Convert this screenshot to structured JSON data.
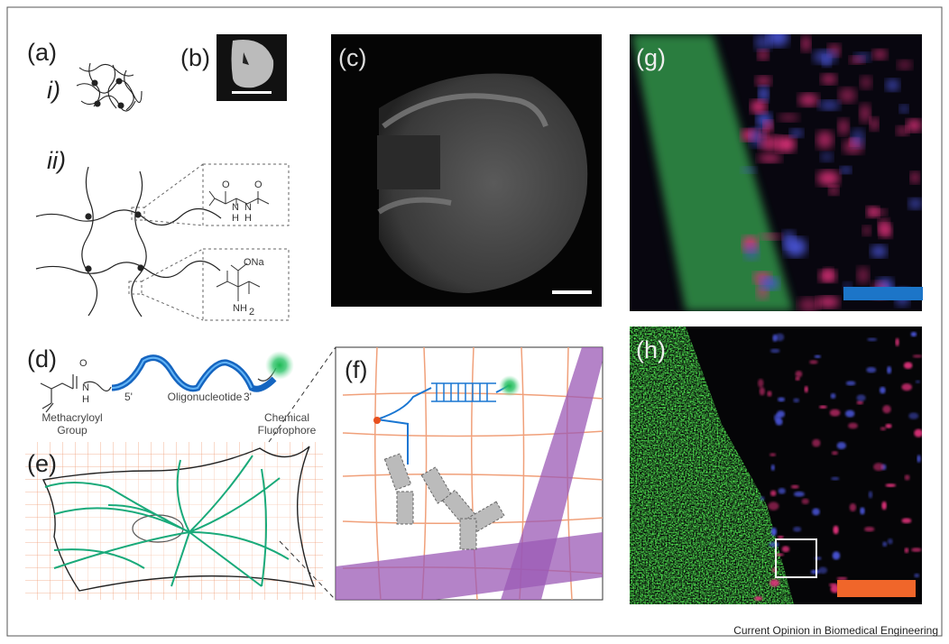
{
  "panels": {
    "a": "(a)",
    "b": "(b)",
    "c": "(c)",
    "d": "(d)",
    "e": "(e)",
    "f": "(f)",
    "g": "(g)",
    "h": "(h)"
  },
  "sublabels": {
    "i": "i)",
    "ii": "ii)"
  },
  "chemistry": {
    "top": {
      "o1": "O",
      "o2": "O",
      "n1": "N",
      "n2": "N",
      "h1": "H",
      "h2": "H"
    },
    "bottom": {
      "ona": "ONa",
      "nh": "NH",
      "sub": "2"
    }
  },
  "probe": {
    "n": "N",
    "h": "H",
    "o": "O",
    "five": "5'",
    "oligo": "Oligonucleotide",
    "three": "3'",
    "group1": "Methacryloyl",
    "group2": "Group",
    "fluor1": "Chemical",
    "fluor2": "Fluorophore"
  },
  "caption": "Current Opinion in Biomedical Engineering"
}
